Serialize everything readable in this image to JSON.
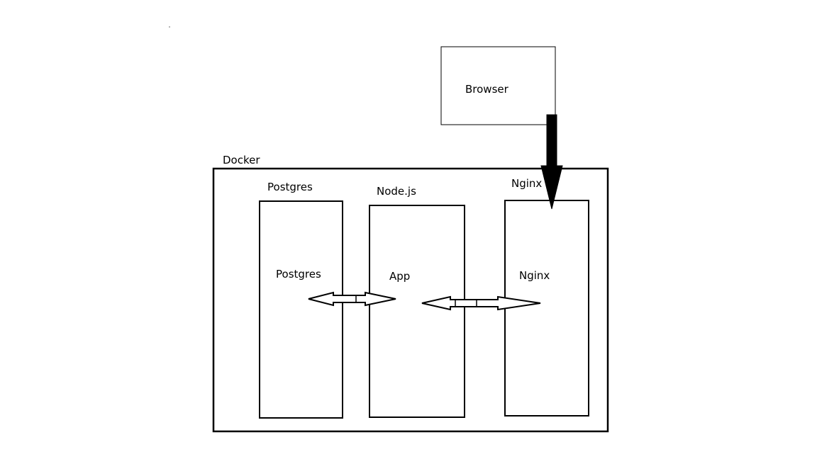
{
  "diagram": {
    "browser": {
      "label": "Browser"
    },
    "docker": {
      "label": "Docker"
    },
    "containers": [
      {
        "id": "postgres",
        "title": "Postgres",
        "service": "Postgres"
      },
      {
        "id": "nodejs",
        "title": "Node.js",
        "service": "App"
      },
      {
        "id": "nginx",
        "title": "Nginx",
        "service": "Nginx"
      }
    ],
    "connections": [
      {
        "from": "postgres",
        "to": "nodejs",
        "direction": "bidirectional"
      },
      {
        "from": "nodejs",
        "to": "nginx",
        "direction": "bidirectional"
      },
      {
        "from": "browser",
        "to": "nginx",
        "direction": "one-way"
      }
    ]
  }
}
